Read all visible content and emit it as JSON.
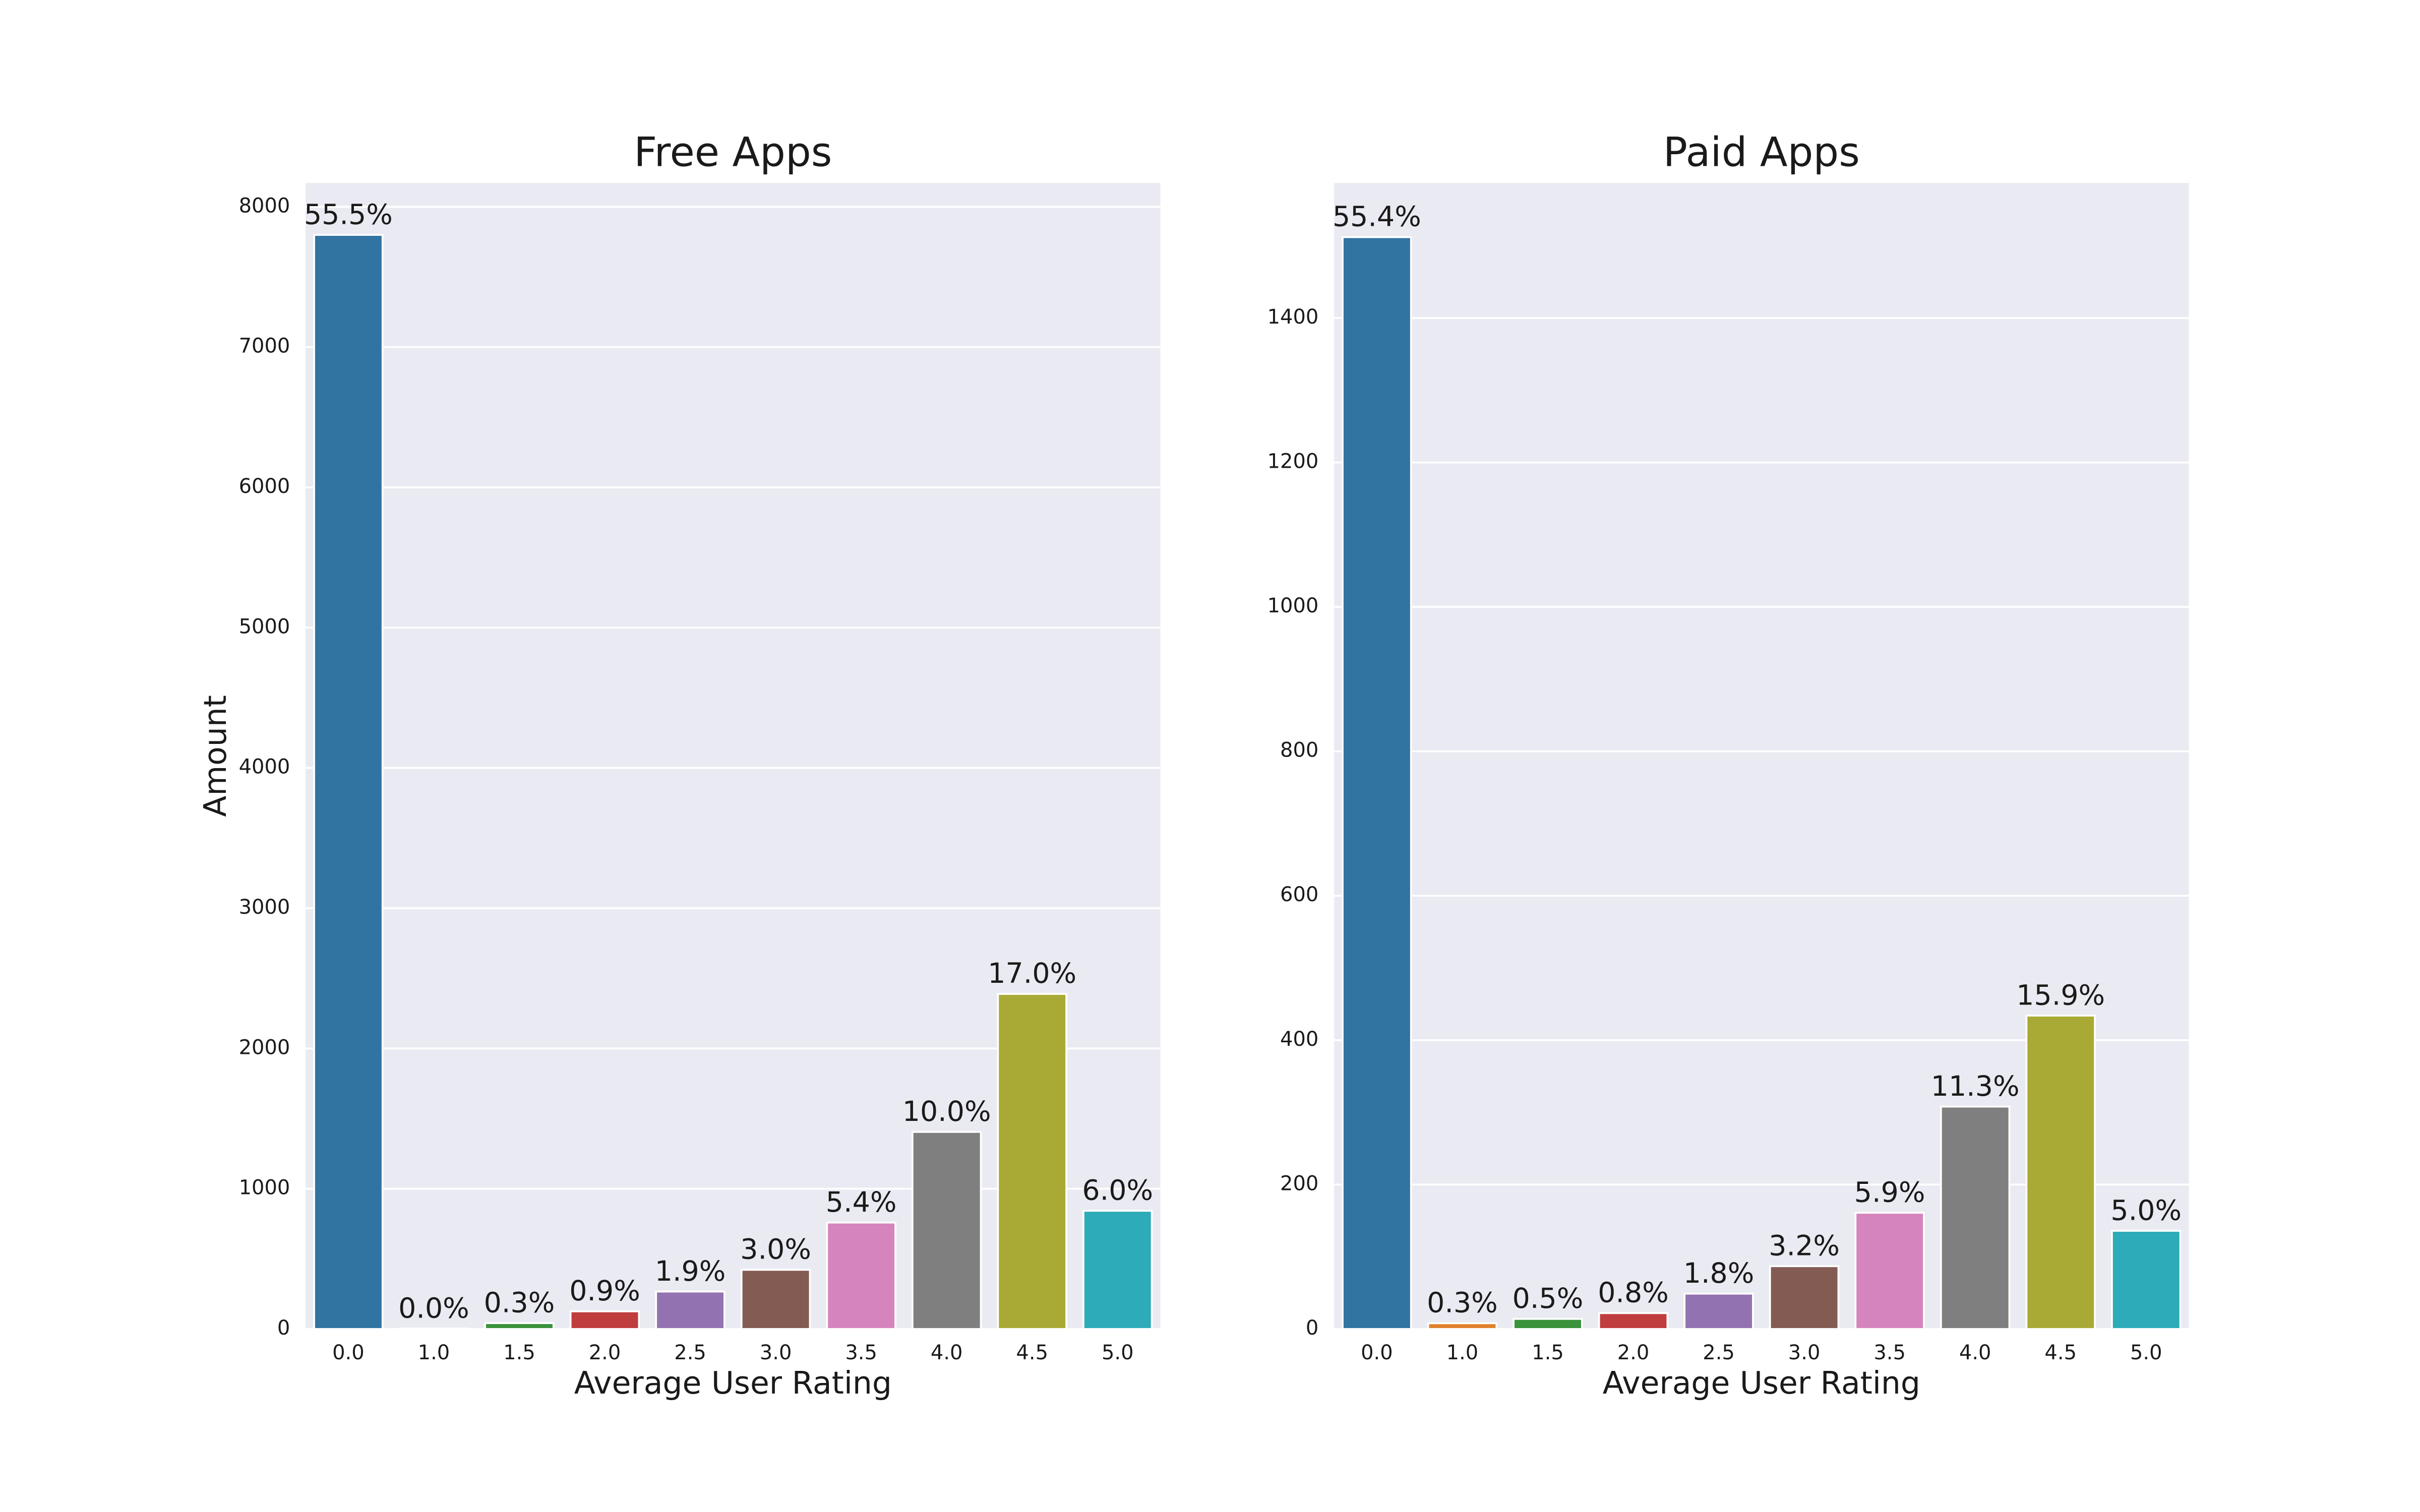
{
  "chart_data": [
    {
      "type": "bar",
      "title": "Free Apps",
      "xlabel": "Average User Rating",
      "ylabel": "Amount",
      "categories": [
        "0.0",
        "1.0",
        "1.5",
        "2.0",
        "2.5",
        "3.0",
        "3.5",
        "4.0",
        "4.5",
        "5.0"
      ],
      "values": [
        7800,
        3,
        42,
        126,
        267,
        422,
        759,
        1405,
        2389,
        843
      ],
      "bar_labels": [
        "55.5%",
        "0.0%",
        "0.3%",
        "0.9%",
        "1.9%",
        "3.0%",
        "5.4%",
        "10.0%",
        "17.0%",
        "6.0%"
      ],
      "colors": [
        "#3274a1",
        "#e1812c",
        "#3a923a",
        "#c03d3e",
        "#9372b2",
        "#845b53",
        "#d684bd",
        "#7f7f7f",
        "#a9aa35",
        "#2eabb8"
      ],
      "ylim": [
        0,
        8170
      ],
      "yticks": [
        0,
        1000,
        2000,
        3000,
        4000,
        5000,
        6000,
        7000,
        8000
      ],
      "grid": true
    },
    {
      "type": "bar",
      "title": "Paid Apps",
      "xlabel": "Average User Rating",
      "categories": [
        "0.0",
        "1.0",
        "1.5",
        "2.0",
        "2.5",
        "3.0",
        "3.5",
        "4.0",
        "4.5",
        "5.0"
      ],
      "values": [
        1512,
        8,
        14,
        22,
        49,
        87,
        161,
        308,
        434,
        136
      ],
      "bar_labels": [
        "55.4%",
        "0.3%",
        "0.5%",
        "0.8%",
        "1.8%",
        "3.2%",
        "5.9%",
        "11.3%",
        "15.9%",
        "5.0%"
      ],
      "colors": [
        "#3274a1",
        "#e1812c",
        "#3a923a",
        "#c03d3e",
        "#9372b2",
        "#845b53",
        "#d684bd",
        "#7f7f7f",
        "#a9aa35",
        "#2eabb8"
      ],
      "ylim": [
        0,
        1587
      ],
      "yticks": [
        0,
        200,
        400,
        600,
        800,
        1000,
        1200,
        1400
      ],
      "grid": true
    }
  ]
}
